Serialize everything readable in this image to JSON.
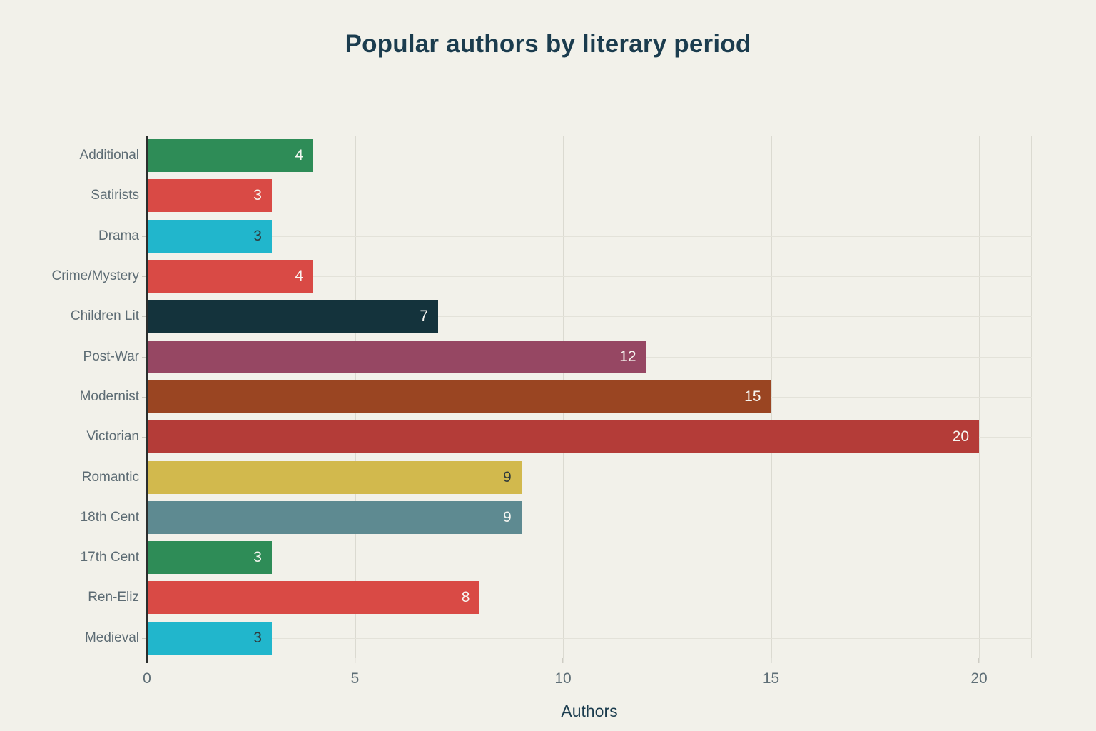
{
  "background_color": "#f2f1ea",
  "title_color": "#1b3c4e",
  "chart_data": {
    "type": "bar",
    "orientation": "horizontal",
    "title": "Popular authors by literary period",
    "xlabel": "Authors",
    "xlim": [
      0,
      20
    ],
    "xticks": [
      0,
      5,
      10,
      15,
      20
    ],
    "grid": true,
    "legend": "none",
    "categories": [
      "Additional",
      "Satirists",
      "Drama",
      "Crime/Mystery",
      "Children Lit",
      "Post-War",
      "Modernist",
      "Victorian",
      "Romantic",
      "18th Cent",
      "17th Cent",
      "Ren-Eliz",
      "Medieval"
    ],
    "values": [
      4,
      3,
      3,
      4,
      7,
      12,
      15,
      20,
      9,
      9,
      3,
      8,
      3
    ],
    "rows": [
      {
        "label": "Additional",
        "value": 4,
        "bar_color": "#2e8c57",
        "value_label_color": "#f7f6f1"
      },
      {
        "label": "Satirists",
        "value": 3,
        "bar_color": "#d94a45",
        "value_label_color": "#f7f6f1"
      },
      {
        "label": "Drama",
        "value": 3,
        "bar_color": "#21b6cc",
        "value_label_color": "#2f3a3c"
      },
      {
        "label": "Crime/Mystery",
        "value": 4,
        "bar_color": "#d94a45",
        "value_label_color": "#f7f6f1"
      },
      {
        "label": "Children Lit",
        "value": 7,
        "bar_color": "#14333c",
        "value_label_color": "#f7f6f1"
      },
      {
        "label": "Post-War",
        "value": 12,
        "bar_color": "#964763",
        "value_label_color": "#f7f6f1"
      },
      {
        "label": "Modernist",
        "value": 15,
        "bar_color": "#9a4522",
        "value_label_color": "#f7f6f1"
      },
      {
        "label": "Victorian",
        "value": 20,
        "bar_color": "#b43c38",
        "value_label_color": "#f7f6f1"
      },
      {
        "label": "Romantic",
        "value": 9,
        "bar_color": "#d2b94d",
        "value_label_color": "#2f3a3c"
      },
      {
        "label": "18th Cent",
        "value": 9,
        "bar_color": "#5e8a91",
        "value_label_color": "#f7f6f1"
      },
      {
        "label": "17th Cent",
        "value": 3,
        "bar_color": "#2e8c57",
        "value_label_color": "#f7f6f1"
      },
      {
        "label": "Ren-Eliz",
        "value": 8,
        "bar_color": "#d94a45",
        "value_label_color": "#f7f6f1"
      },
      {
        "label": "Medieval",
        "value": 3,
        "bar_color": "#21b6cc",
        "value_label_color": "#2f3a3c"
      }
    ]
  }
}
